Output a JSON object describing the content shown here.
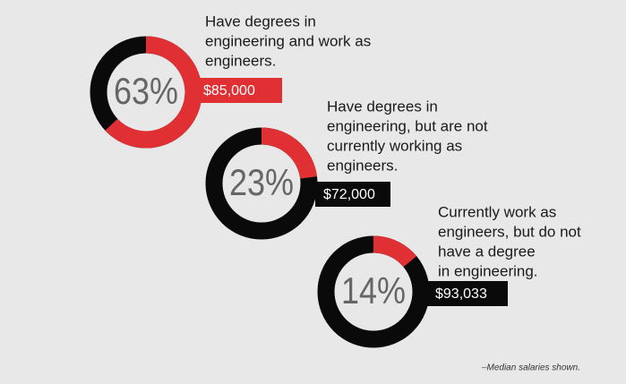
{
  "chart_data": [
    {
      "type": "donut",
      "values": [
        63
      ],
      "value_labels": [
        "63%"
      ],
      "color": "#e03034",
      "ring_color": "#0a0a0a",
      "description": [
        "Have degrees in",
        "engineering and work as",
        "engineers."
      ],
      "salary": "$85,000",
      "salary_color": "#e03034"
    },
    {
      "type": "donut",
      "values": [
        23
      ],
      "value_labels": [
        "23%"
      ],
      "color": "#e03034",
      "ring_color": "#0a0a0a",
      "description": [
        "Have degrees in",
        "engineering, but are not",
        "currently working as",
        "engineers."
      ],
      "salary": "$72,000",
      "salary_color": "#0a0a0a"
    },
    {
      "type": "donut",
      "values": [
        14
      ],
      "value_labels": [
        "14%"
      ],
      "color": "#e03034",
      "ring_color": "#0a0a0a",
      "description": [
        "Currently work as",
        "engineers, but do not",
        "have a degree",
        "in engineering."
      ],
      "salary": "$93,033",
      "salary_color": "#0a0a0a"
    }
  ],
  "footnote": "–Median salaries shown."
}
